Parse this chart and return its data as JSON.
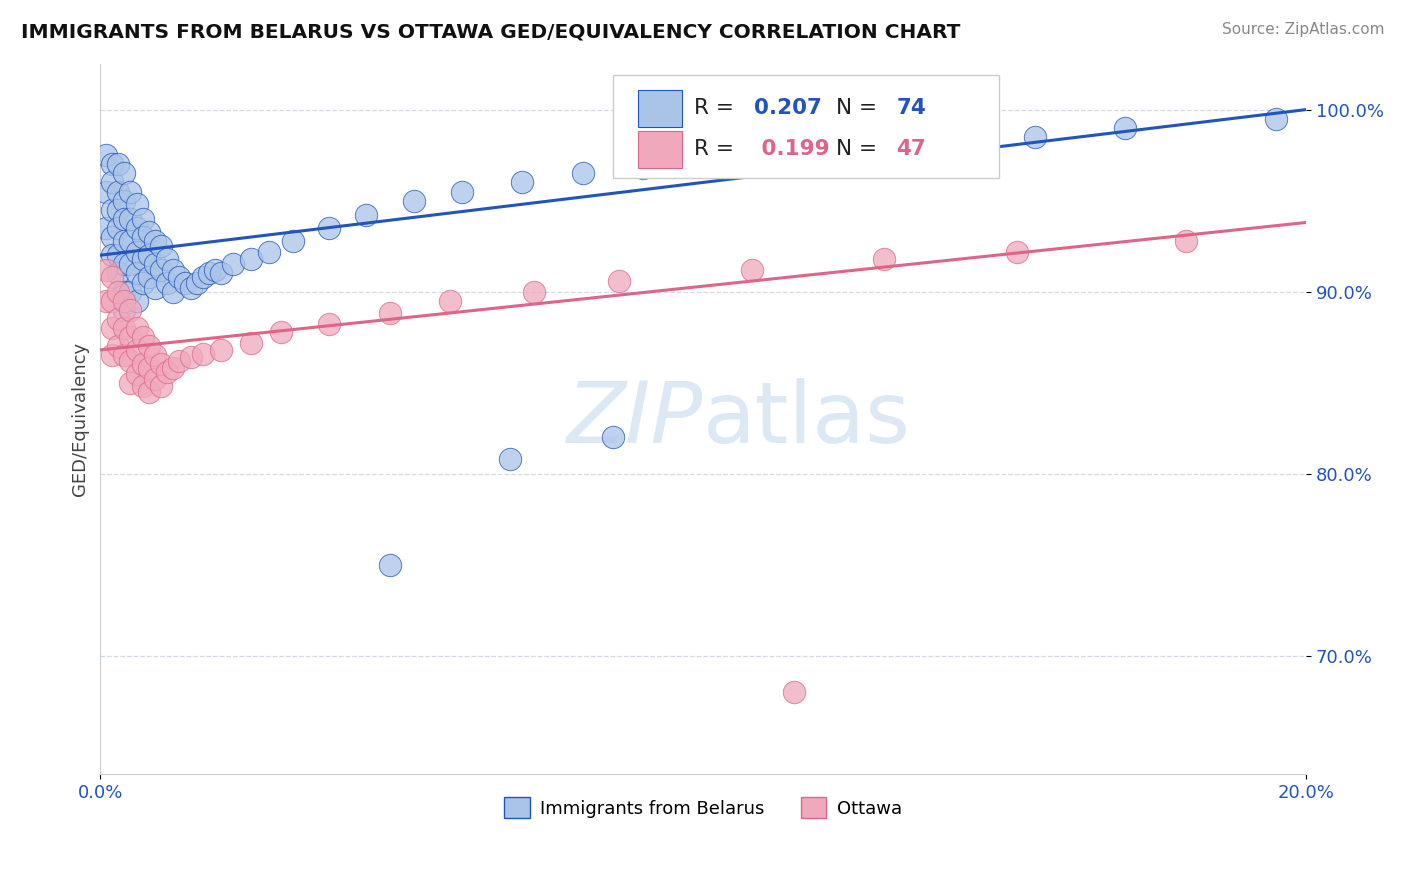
{
  "title": "IMMIGRANTS FROM BELARUS VS OTTAWA GED/EQUIVALENCY CORRELATION CHART",
  "source_text": "Source: ZipAtlas.com",
  "ylabel": "GED/Equivalency",
  "xlim": [
    0.0,
    0.2
  ],
  "ylim": [
    0.635,
    1.025
  ],
  "y_ticks": [
    0.7,
    0.8,
    0.9,
    1.0
  ],
  "y_tick_labels": [
    "70.0%",
    "80.0%",
    "90.0%",
    "100.0%"
  ],
  "blue_R": 0.207,
  "blue_N": 74,
  "pink_R": 0.199,
  "pink_N": 47,
  "blue_color": "#aac4e8",
  "pink_color": "#f0a8bc",
  "blue_line_color": "#2255bb",
  "pink_line_color": "#dd6688",
  "legend1_label": "Immigrants from Belarus",
  "legend2_label": "Ottawa",
  "watermark_color": "#dde8f5",
  "blue_trend": [
    0.92,
    1.0
  ],
  "pink_trend": [
    0.868,
    0.938
  ],
  "blue_x": [
    0.001,
    0.001,
    0.001,
    0.002,
    0.002,
    0.002,
    0.002,
    0.002,
    0.003,
    0.003,
    0.003,
    0.003,
    0.003,
    0.003,
    0.004,
    0.004,
    0.004,
    0.004,
    0.004,
    0.004,
    0.004,
    0.005,
    0.005,
    0.005,
    0.005,
    0.005,
    0.006,
    0.006,
    0.006,
    0.006,
    0.006,
    0.007,
    0.007,
    0.007,
    0.007,
    0.008,
    0.008,
    0.008,
    0.009,
    0.009,
    0.009,
    0.01,
    0.01,
    0.011,
    0.011,
    0.012,
    0.012,
    0.013,
    0.014,
    0.015,
    0.016,
    0.017,
    0.018,
    0.019,
    0.02,
    0.022,
    0.025,
    0.028,
    0.032,
    0.038,
    0.044,
    0.052,
    0.06,
    0.07,
    0.08,
    0.09,
    0.11,
    0.13,
    0.155,
    0.17,
    0.048,
    0.068,
    0.085,
    0.195
  ],
  "blue_y": [
    0.975,
    0.955,
    0.935,
    0.97,
    0.96,
    0.945,
    0.93,
    0.92,
    0.97,
    0.955,
    0.945,
    0.935,
    0.92,
    0.91,
    0.965,
    0.95,
    0.94,
    0.928,
    0.915,
    0.9,
    0.89,
    0.955,
    0.94,
    0.928,
    0.915,
    0.9,
    0.948,
    0.935,
    0.922,
    0.91,
    0.895,
    0.94,
    0.93,
    0.918,
    0.905,
    0.933,
    0.92,
    0.908,
    0.928,
    0.915,
    0.902,
    0.925,
    0.912,
    0.918,
    0.905,
    0.912,
    0.9,
    0.908,
    0.905,
    0.902,
    0.905,
    0.908,
    0.91,
    0.912,
    0.91,
    0.915,
    0.918,
    0.922,
    0.928,
    0.935,
    0.942,
    0.95,
    0.955,
    0.96,
    0.965,
    0.968,
    0.972,
    0.978,
    0.985,
    0.99,
    0.75,
    0.808,
    0.82,
    0.995
  ],
  "pink_x": [
    0.001,
    0.001,
    0.002,
    0.002,
    0.002,
    0.002,
    0.003,
    0.003,
    0.003,
    0.004,
    0.004,
    0.004,
    0.005,
    0.005,
    0.005,
    0.005,
    0.006,
    0.006,
    0.006,
    0.007,
    0.007,
    0.007,
    0.008,
    0.008,
    0.008,
    0.009,
    0.009,
    0.01,
    0.01,
    0.011,
    0.012,
    0.013,
    0.015,
    0.017,
    0.02,
    0.025,
    0.03,
    0.038,
    0.048,
    0.058,
    0.072,
    0.086,
    0.108,
    0.13,
    0.152,
    0.18,
    0.115
  ],
  "pink_y": [
    0.912,
    0.895,
    0.908,
    0.895,
    0.88,
    0.865,
    0.9,
    0.885,
    0.87,
    0.895,
    0.88,
    0.865,
    0.89,
    0.875,
    0.862,
    0.85,
    0.88,
    0.868,
    0.855,
    0.875,
    0.86,
    0.848,
    0.87,
    0.858,
    0.845,
    0.865,
    0.852,
    0.86,
    0.848,
    0.856,
    0.858,
    0.862,
    0.864,
    0.866,
    0.868,
    0.872,
    0.878,
    0.882,
    0.888,
    0.895,
    0.9,
    0.906,
    0.912,
    0.918,
    0.922,
    0.928,
    0.68
  ]
}
